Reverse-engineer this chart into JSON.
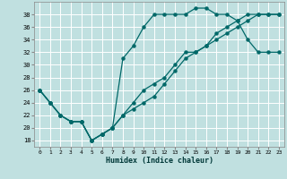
{
  "xlabel": "Humidex (Indice chaleur)",
  "bg_color": "#c0e0e0",
  "grid_color": "#ffffff",
  "line_color": "#006868",
  "xlim": [
    -0.5,
    23.5
  ],
  "ylim": [
    17,
    40
  ],
  "yticks": [
    18,
    20,
    22,
    24,
    26,
    28,
    30,
    32,
    34,
    36,
    38
  ],
  "xticks": [
    0,
    1,
    2,
    3,
    4,
    5,
    6,
    7,
    8,
    9,
    10,
    11,
    12,
    13,
    14,
    15,
    16,
    17,
    18,
    19,
    20,
    21,
    22,
    23
  ],
  "line1_x": [
    0,
    1,
    2,
    3,
    4,
    5,
    6,
    7,
    8,
    9,
    10,
    11,
    12,
    13,
    14,
    15,
    16,
    17,
    18,
    19,
    20,
    21,
    22,
    23
  ],
  "line1_y": [
    26,
    24,
    22,
    21,
    21,
    18,
    19,
    20,
    31,
    33,
    36,
    38,
    38,
    38,
    38,
    39,
    39,
    38,
    38,
    37,
    34,
    32,
    32,
    32
  ],
  "line2_x": [
    0,
    1,
    2,
    3,
    4,
    5,
    6,
    7,
    8,
    9,
    10,
    11,
    12,
    13,
    14,
    15,
    16,
    17,
    18,
    19,
    20,
    21,
    22,
    23
  ],
  "line2_y": [
    26,
    24,
    22,
    21,
    21,
    18,
    19,
    20,
    22,
    23,
    24,
    25,
    27,
    29,
    31,
    32,
    33,
    35,
    36,
    37,
    38,
    38,
    38,
    38
  ],
  "line3_x": [
    0,
    1,
    2,
    3,
    4,
    5,
    6,
    7,
    8,
    9,
    10,
    11,
    12,
    13,
    14,
    15,
    16,
    17,
    18,
    19,
    20,
    21,
    22,
    23
  ],
  "line3_y": [
    26,
    24,
    22,
    21,
    21,
    18,
    19,
    20,
    22,
    24,
    26,
    27,
    28,
    30,
    32,
    32,
    33,
    34,
    35,
    36,
    37,
    38,
    38,
    38
  ]
}
